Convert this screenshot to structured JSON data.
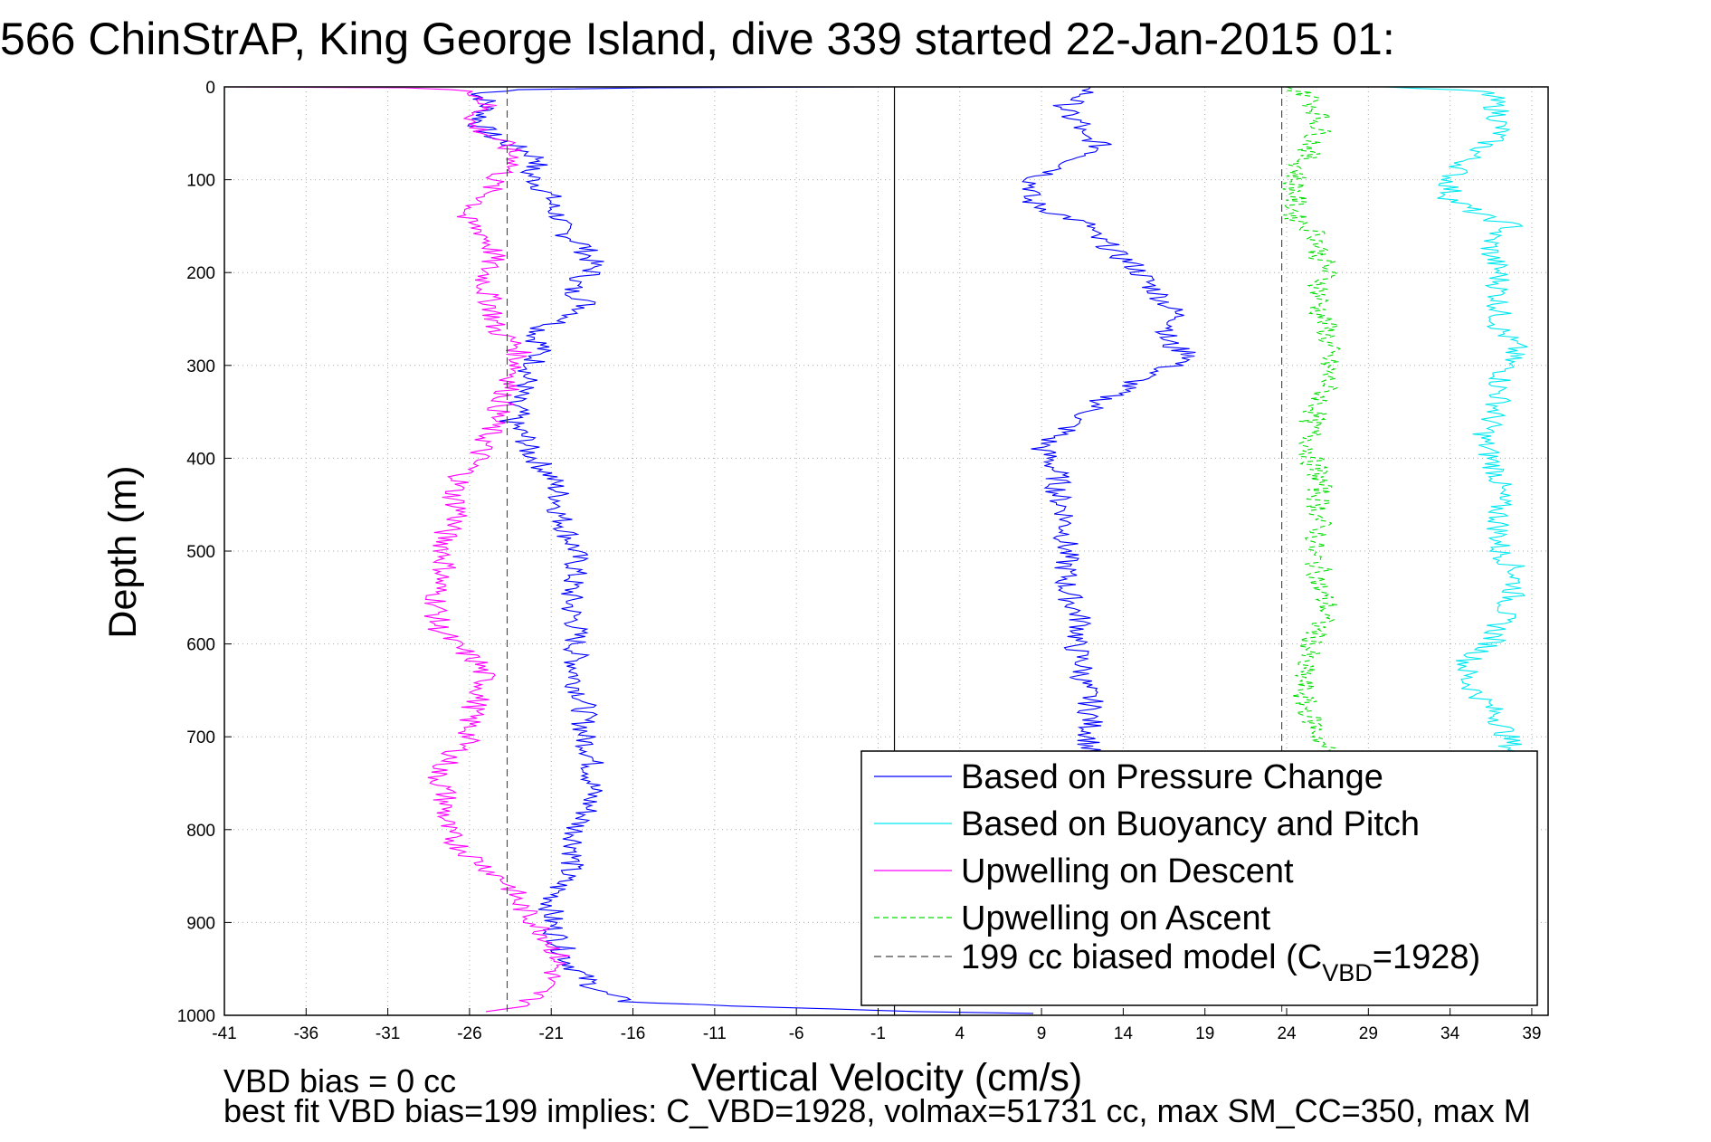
{
  "chart_data": {
    "type": "line",
    "title": "566 ChinStrAP, King George Island, dive 339 started 22-Jan-2015 01:",
    "xlabel": "Vertical Velocity (cm/s)",
    "ylabel": "Depth (m)",
    "xlim": [
      -41,
      40
    ],
    "ylim": [
      0,
      1000
    ],
    "y_reversed": true,
    "grid": true,
    "x_ticks": [
      "-41",
      "-36",
      "-31",
      "-26",
      "-21",
      "-16",
      "-11",
      "-6",
      "-1",
      "4",
      "9",
      "14",
      "19",
      "24",
      "29",
      "34",
      "39"
    ],
    "y_ticks": [
      "0",
      "100",
      "200",
      "300",
      "400",
      "500",
      "600",
      "700",
      "800",
      "900",
      "1000"
    ],
    "legend_position": "bottom-right",
    "footer": {
      "line1": "VBD bias = 0 cc",
      "line2": "best fit VBD bias=199 implies: C_VBD=1928, volmax=51731 cc, max SM_CC=350, max M"
    },
    "series": [
      {
        "name": "Based on Pressure Change",
        "color": "#0000ff",
        "style": "solid",
        "segments": [
          {
            "depth": [
              0,
              1,
              3,
              8,
              15,
              25,
              40,
              55,
              70,
              80,
              90,
              100,
              110,
              120,
              130,
              140,
              150,
              160,
              170,
              180,
              190,
              200,
              210,
              220,
              230,
              240,
              250,
              260,
              270,
              280,
              290,
              300,
              310,
              320,
              330,
              340,
              350,
              360,
              370,
              380,
              390,
              400,
              420,
              440,
              460,
              480,
              500,
              520,
              540,
              560,
              580,
              600,
              620,
              640,
              660,
              680,
              700,
              720,
              740,
              760,
              780,
              800,
              820,
              840,
              860,
              880,
              900,
              920,
              940,
              960,
              975,
              985,
              990,
              993,
              996,
              998
            ],
            "v": [
              -0.5,
              -15,
              -23,
              -25.5,
              -25,
              -25,
              -25.5,
              -24.5,
              -22.5,
              -21.5,
              -22.5,
              -22,
              -21.5,
              -21,
              -21,
              -20.5,
              -20.5,
              -20,
              -19,
              -18.8,
              -18.5,
              -18.5,
              -19.5,
              -19.8,
              -18.8,
              -19,
              -20,
              -21.5,
              -22,
              -21.5,
              -22,
              -22,
              -22.5,
              -22.5,
              -23,
              -23.5,
              -23,
              -23.5,
              -23,
              -22.5,
              -22.5,
              -22,
              -21,
              -20.5,
              -20.5,
              -20,
              -19.5,
              -19.5,
              -19.8,
              -19.8,
              -19.5,
              -19.5,
              -19.5,
              -19.5,
              -19,
              -19,
              -19,
              -18.5,
              -18.5,
              -18.5,
              -18.8,
              -19.5,
              -19.5,
              -19.8,
              -20.5,
              -21,
              -21,
              -20.5,
              -20,
              -19,
              -18,
              -16.5,
              -10,
              -4,
              1.5,
              8.5
            ]
          }
        ]
      },
      {
        "name": "Based on Pressure Change (ascent)",
        "color": "#0000ff",
        "style": "solid",
        "segments": [
          {
            "depth": [
              0,
              10,
              20,
              30,
              40,
              50,
              60,
              70,
              80,
              90,
              100,
              110,
              120,
              130,
              140,
              150,
              160,
              170,
              180,
              190,
              200,
              210,
              220,
              230,
              240,
              250,
              260,
              270,
              280,
              290,
              300,
              310,
              320,
              330,
              340,
              350,
              360,
              370,
              380,
              390,
              400,
              420,
              440,
              460,
              480,
              500,
              520,
              540,
              560,
              580,
              600,
              620,
              640,
              660,
              680,
              700,
              720
            ],
            "v": [
              12,
              11.5,
              10.5,
              10.5,
              11.5,
              11,
              12.5,
              12.5,
              11,
              10,
              8.5,
              8.5,
              8,
              9,
              10.5,
              12,
              12,
              13,
              13.5,
              14.5,
              15,
              15.5,
              16,
              16.5,
              17,
              17.5,
              17,
              16.5,
              17,
              18.5,
              17,
              15.5,
              14.5,
              13.5,
              12.5,
              12,
              11,
              10.5,
              9.5,
              9,
              9.5,
              10,
              10,
              10.5,
              10.5,
              10.5,
              10.5,
              10.5,
              11,
              11.5,
              11,
              11.5,
              11.5,
              12,
              12,
              12,
              11.8
            ]
          }
        ]
      },
      {
        "name": "Based on Buoyancy and Pitch",
        "color": "#00e8f0",
        "style": "solid",
        "segments": [
          {
            "depth": [
              0,
              5,
              10,
              30,
              50,
              80,
              100,
              120,
              140,
              150,
              160,
              180,
              200,
              220,
              240,
              260,
              280,
              300,
              320,
              340,
              360,
              380,
              400,
              420,
              440,
              460,
              480,
              500,
              520,
              540,
              560,
              580,
              600,
              620,
              640,
              660,
              680,
              700,
              720
            ],
            "v": [
              30,
              36,
              36.5,
              37,
              37,
              35,
              34,
              34,
              36,
              38,
              36.5,
              36.5,
              37,
              37,
              37,
              37,
              38,
              37.5,
              37,
              37,
              36.5,
              36,
              36.5,
              37,
              37,
              37,
              37,
              37,
              38,
              38,
              37.5,
              37,
              36.5,
              35,
              35,
              36,
              37,
              37.5,
              38
            ]
          }
        ]
      },
      {
        "name": "Upwelling on Descent",
        "color": "#ff00ff",
        "style": "solid",
        "segments": [
          {
            "depth": [
              0,
              1,
              5,
              20,
              40,
              60,
              80,
              100,
              120,
              140,
              160,
              180,
              200,
              220,
              240,
              260,
              280,
              300,
              320,
              340,
              360,
              380,
              400,
              420,
              440,
              460,
              480,
              500,
              520,
              540,
              560,
              580,
              600,
              620,
              640,
              660,
              680,
              700,
              720,
              740,
              760,
              780,
              800,
              820,
              840,
              860,
              880,
              900,
              920,
              940,
              960,
              980,
              990,
              996
            ],
            "v": [
              -41,
              -30,
              -25.5,
              -25,
              -26,
              -24,
              -23,
              -24.5,
              -25,
              -26.5,
              -25,
              -24.5,
              -25,
              -25,
              -24.5,
              -24.5,
              -23,
              -23,
              -23.5,
              -24,
              -24.5,
              -25,
              -25.5,
              -26.5,
              -27,
              -26.5,
              -27.5,
              -27.5,
              -27.5,
              -28,
              -28,
              -28,
              -27,
              -25.5,
              -25,
              -25.5,
              -26,
              -26,
              -27,
              -28,
              -27.5,
              -27.5,
              -27.5,
              -26.5,
              -25,
              -23.5,
              -23,
              -22,
              -21,
              -20.5,
              -21,
              -22,
              -22.5,
              -25
            ]
          }
        ]
      },
      {
        "name": "Upwelling on Ascent",
        "color": "#00dd00",
        "style": "dashed",
        "segments": [
          {
            "depth": [
              0,
              10,
              30,
              50,
              80,
              100,
              120,
              140,
              160,
              180,
              200,
              220,
              240,
              260,
              280,
              300,
              320,
              340,
              360,
              380,
              400,
              420,
              440,
              460,
              480,
              500,
              520,
              540,
              560,
              580,
              600,
              620,
              640,
              660,
              680,
              700,
              720
            ],
            "v": [
              24,
              25.5,
              26,
              26,
              25,
              24.5,
              24.5,
              24.5,
              26,
              26,
              26.5,
              26,
              26,
              26.5,
              26.5,
              26.5,
              26.5,
              26,
              25.5,
              25.5,
              25.5,
              26,
              26,
              26,
              26,
              25.5,
              26,
              26,
              26.5,
              26,
              25.5,
              25,
              25,
              25,
              25.5,
              26,
              26.5
            ]
          }
        ]
      },
      {
        "name": "199 cc biased model (C_VBD=1928)",
        "color": "#444444",
        "style": "dashed",
        "segments": [
          {
            "depth": [
              0,
              1000
            ],
            "v": [
              -23.7,
              -23.7
            ]
          },
          {
            "depth": [
              0,
              1000
            ],
            "v": [
              23.7,
              23.7
            ]
          }
        ]
      }
    ],
    "reference_lines": [
      {
        "v": 0,
        "color": "#000000",
        "style": "solid"
      }
    ],
    "legend": [
      {
        "label": "Based on Pressure Change",
        "color": "#0000ff",
        "style": "solid"
      },
      {
        "label": "Based on Buoyancy and Pitch",
        "color": "#00e8f0",
        "style": "solid"
      },
      {
        "label": "Upwelling on Descent",
        "color": "#ff00ff",
        "style": "solid"
      },
      {
        "label": "Upwelling on Ascent",
        "color": "#00dd00",
        "style": "dashed"
      },
      {
        "label_main": "199 cc biased model (C",
        "label_sub": "VBD",
        "label_tail": "=1928)",
        "color": "#444444",
        "style": "dashed"
      }
    ]
  }
}
